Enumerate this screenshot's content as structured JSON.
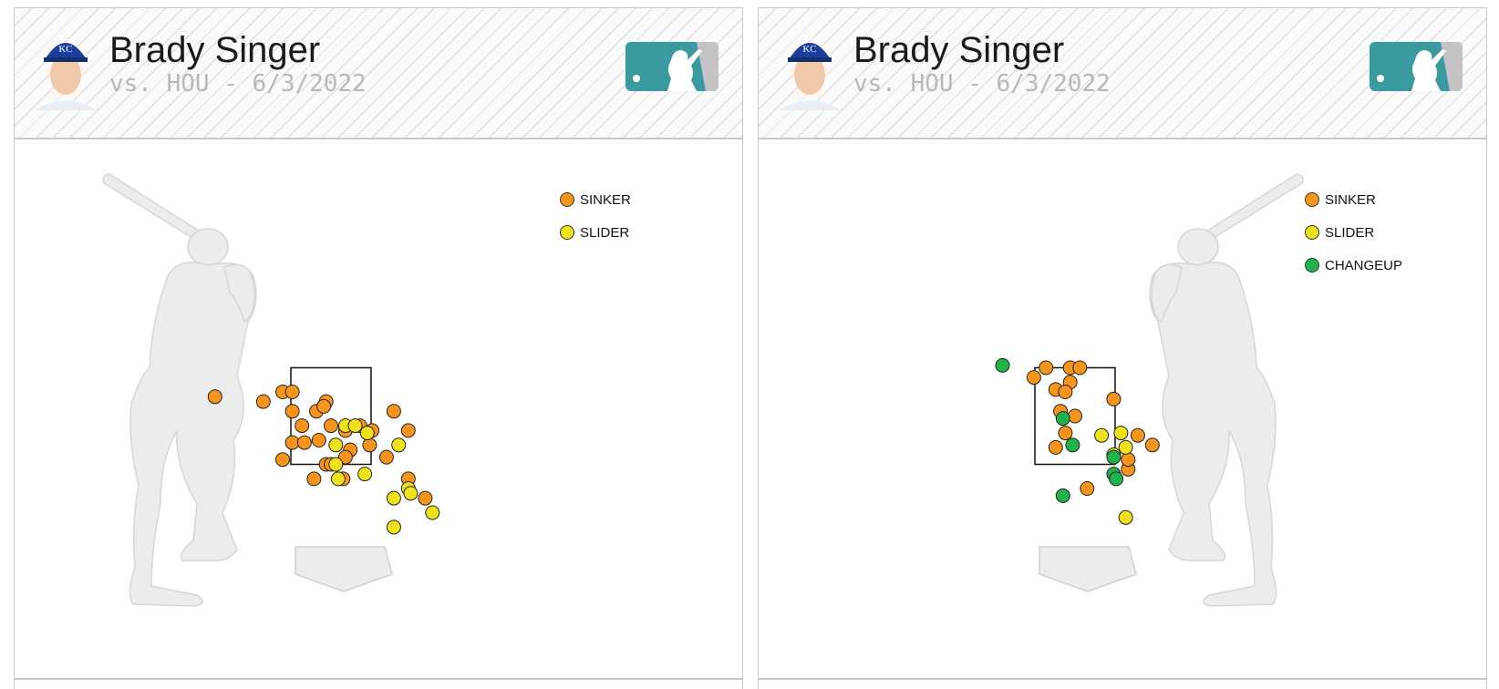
{
  "panels": [
    {
      "player": "Brady Singer",
      "subtitle": "vs. HOU - 6/3/2022",
      "team_logo_text": "KC",
      "batter_side": "right",
      "legend": [
        {
          "label": "SINKER",
          "color": "#f7941d"
        },
        {
          "label": "SLIDER",
          "color": "#eee21f"
        }
      ]
    },
    {
      "player": "Brady Singer",
      "subtitle": "vs. HOU - 6/3/2022",
      "team_logo_text": "KC",
      "batter_side": "left",
      "legend": [
        {
          "label": "SINKER",
          "color": "#f7941d"
        },
        {
          "label": "SLIDER",
          "color": "#eee21f"
        },
        {
          "label": "CHANGEUP",
          "color": "#22b24c"
        }
      ]
    }
  ],
  "colors": {
    "logo_teal": "#3a9aa0",
    "logo_gray": "#c4c4c4",
    "strike_zone": "#111111"
  },
  "chart_data": [
    {
      "type": "scatter",
      "title": "Brady Singer vs. HOU - 6/3/2022",
      "xlabel": "",
      "ylabel": "",
      "x_unit": "feet (catcher view, plate_x)",
      "y_unit": "feet (plate_z)",
      "strike_zone": {
        "x": [
          -0.83,
          0.83
        ],
        "z": [
          1.5,
          3.5
        ]
      },
      "series": [
        {
          "name": "SINKER",
          "points": [
            [
              -2.4,
              2.9
            ],
            [
              -1.4,
              2.8
            ],
            [
              -1.0,
              3.0
            ],
            [
              -0.8,
              3.0
            ],
            [
              -0.8,
              2.6
            ],
            [
              -0.6,
              2.3
            ],
            [
              -0.3,
              2.6
            ],
            [
              -0.1,
              2.8
            ],
            [
              -0.15,
              2.7
            ],
            [
              0.0,
              2.3
            ],
            [
              0.3,
              2.2
            ],
            [
              0.6,
              2.3
            ],
            [
              0.85,
              2.2
            ],
            [
              1.3,
              2.6
            ],
            [
              1.6,
              2.2
            ],
            [
              -0.8,
              1.95
            ],
            [
              -0.55,
              1.95
            ],
            [
              -0.25,
              2.0
            ],
            [
              0.4,
              1.8
            ],
            [
              0.8,
              1.9
            ],
            [
              -0.1,
              1.5
            ],
            [
              0.3,
              1.65
            ],
            [
              -1.0,
              1.6
            ],
            [
              1.15,
              1.65
            ],
            [
              -0.35,
              1.2
            ],
            [
              0.25,
              1.2
            ],
            [
              1.6,
              1.2
            ],
            [
              1.95,
              0.8
            ],
            [
              0.0,
              1.5
            ]
          ]
        },
        {
          "name": "SLIDER",
          "points": [
            [
              0.3,
              2.3
            ],
            [
              0.5,
              2.3
            ],
            [
              0.75,
              2.15
            ],
            [
              0.1,
              1.9
            ],
            [
              0.1,
              1.5
            ],
            [
              1.4,
              1.9
            ],
            [
              0.15,
              1.2
            ],
            [
              0.7,
              1.3
            ],
            [
              1.6,
              1.0
            ],
            [
              1.65,
              0.9
            ],
            [
              1.3,
              0.8
            ],
            [
              2.1,
              0.5
            ],
            [
              1.3,
              0.2
            ]
          ]
        }
      ]
    },
    {
      "type": "scatter",
      "title": "Brady Singer vs. HOU - 6/3/2022",
      "xlabel": "",
      "ylabel": "",
      "x_unit": "feet (catcher view, plate_x)",
      "y_unit": "feet (plate_z)",
      "strike_zone": {
        "x": [
          -0.83,
          0.83
        ],
        "z": [
          1.5,
          3.5
        ]
      },
      "series": [
        {
          "name": "SINKER",
          "points": [
            [
              -0.6,
              3.5
            ],
            [
              -0.1,
              3.5
            ],
            [
              0.1,
              3.5
            ],
            [
              -0.85,
              3.3
            ],
            [
              -0.1,
              3.2
            ],
            [
              -0.4,
              3.05
            ],
            [
              -0.2,
              3.0
            ],
            [
              0.8,
              2.85
            ],
            [
              -0.3,
              2.6
            ],
            [
              0.0,
              2.5
            ],
            [
              -0.2,
              2.15
            ],
            [
              1.3,
              2.1
            ],
            [
              1.6,
              1.9
            ],
            [
              -0.4,
              1.85
            ],
            [
              1.1,
              1.4
            ],
            [
              0.25,
              1.0
            ],
            [
              1.1,
              1.6
            ]
          ]
        },
        {
          "name": "SLIDER",
          "points": [
            [
              0.55,
              2.1
            ],
            [
              0.95,
              2.15
            ],
            [
              1.05,
              1.85
            ],
            [
              0.8,
              1.7
            ],
            [
              1.05,
              0.4
            ]
          ]
        },
        {
          "name": "CHANGEUP",
          "points": [
            [
              -1.5,
              3.55
            ],
            [
              -0.25,
              2.45
            ],
            [
              -0.05,
              1.9
            ],
            [
              0.8,
              1.65
            ],
            [
              0.8,
              1.3
            ],
            [
              0.85,
              1.2
            ],
            [
              -0.25,
              0.85
            ]
          ]
        }
      ]
    }
  ]
}
